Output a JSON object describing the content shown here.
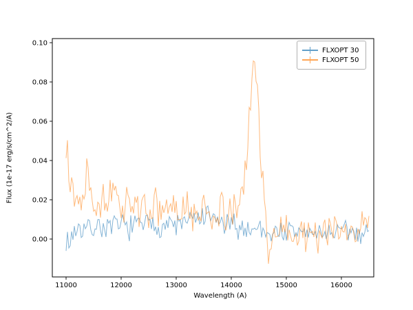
{
  "chart_data": {
    "type": "line",
    "title": "",
    "xlabel": "Wavelength (A)",
    "ylabel": "Flux (1e-17 erg/s/cm^2/A)",
    "xlim": [
      10750,
      16588
    ],
    "ylim": [
      -0.0193,
      0.1021
    ],
    "xticks": [
      11000,
      12000,
      13000,
      14000,
      15000,
      16000
    ],
    "yticks": [
      0.0,
      0.02,
      0.04,
      0.06,
      0.08,
      0.1
    ],
    "grid": false,
    "legend_position": "upper right",
    "series": [
      {
        "name": "FLXOPT 30",
        "color": "#1f77b4",
        "alpha": 0.55,
        "noise": 0.0038,
        "seed": 7,
        "step": 25,
        "anchors": [
          [
            11000,
            0.001
          ],
          [
            11050,
            -0.004
          ],
          [
            11120,
            0.004
          ],
          [
            11250,
            0.006
          ],
          [
            11400,
            0.005
          ],
          [
            11600,
            0.007
          ],
          [
            11800,
            0.005
          ],
          [
            12000,
            0.007
          ],
          [
            12200,
            0.006
          ],
          [
            12400,
            0.008
          ],
          [
            12600,
            0.006
          ],
          [
            12800,
            0.008
          ],
          [
            13000,
            0.007
          ],
          [
            13200,
            0.009
          ],
          [
            13400,
            0.01
          ],
          [
            13600,
            0.011
          ],
          [
            13750,
            0.009
          ],
          [
            13900,
            0.007
          ],
          [
            14100,
            0.006
          ],
          [
            14300,
            0.005
          ],
          [
            14500,
            0.006
          ],
          [
            14700,
            0.003
          ],
          [
            14900,
            0.004
          ],
          [
            15100,
            0.003
          ],
          [
            15300,
            0.004
          ],
          [
            15500,
            0.002
          ],
          [
            15700,
            0.004
          ],
          [
            15900,
            0.003
          ],
          [
            16100,
            0.004
          ],
          [
            16300,
            0.003
          ],
          [
            16500,
            0.004
          ]
        ]
      },
      {
        "name": "FLXOPT 50",
        "color": "#ff7f0e",
        "alpha": 0.55,
        "noise": 0.0055,
        "seed": 13,
        "step": 25,
        "anchors": [
          [
            11000,
            0.042
          ],
          [
            11025,
            0.06
          ],
          [
            11060,
            0.032
          ],
          [
            11120,
            0.024
          ],
          [
            11200,
            0.02
          ],
          [
            11300,
            0.021
          ],
          [
            11380,
            0.04
          ],
          [
            11430,
            0.028
          ],
          [
            11550,
            0.018
          ],
          [
            11700,
            0.02
          ],
          [
            11850,
            0.022
          ],
          [
            12000,
            0.016
          ],
          [
            12150,
            0.02
          ],
          [
            12300,
            0.016
          ],
          [
            12450,
            0.014
          ],
          [
            12600,
            0.017
          ],
          [
            12750,
            0.013
          ],
          [
            12900,
            0.016
          ],
          [
            13050,
            0.012
          ],
          [
            13200,
            0.015
          ],
          [
            13350,
            0.012
          ],
          [
            13500,
            0.015
          ],
          [
            13650,
            0.013
          ],
          [
            13800,
            0.014
          ],
          [
            13950,
            0.012
          ],
          [
            14100,
            0.014
          ],
          [
            14220,
            0.025
          ],
          [
            14300,
            0.05
          ],
          [
            14370,
            0.08
          ],
          [
            14420,
            0.094
          ],
          [
            14470,
            0.078
          ],
          [
            14530,
            0.045
          ],
          [
            14600,
            0.018
          ],
          [
            14660,
            0.002
          ],
          [
            14690,
            -0.01
          ],
          [
            14730,
            0.002
          ],
          [
            14850,
            0.003
          ],
          [
            15000,
            0.004
          ],
          [
            15200,
            0.002
          ],
          [
            15400,
            0.004
          ],
          [
            15600,
            0.002
          ],
          [
            15800,
            0.004
          ],
          [
            16000,
            0.003
          ],
          [
            16200,
            0.004
          ],
          [
            16350,
            0.007
          ],
          [
            16450,
            0.009
          ],
          [
            16500,
            0.005
          ]
        ]
      }
    ]
  }
}
